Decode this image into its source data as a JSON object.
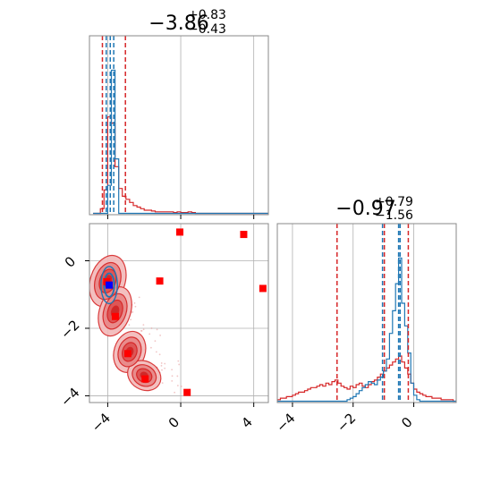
{
  "chart_data": [
    {
      "type": "histogram",
      "panel": "param1-marginal",
      "title": {
        "main": "−3.86",
        "sup": "+0.83",
        "sub": "−0.43"
      },
      "xlim": [
        -5.0,
        4.8
      ],
      "grid": true,
      "bin_edges": [
        -4.8,
        -4.6,
        -4.4,
        -4.2,
        -4.0,
        -3.8,
        -3.6,
        -3.4,
        -3.2,
        -3.0,
        -2.8,
        -2.6,
        -2.4,
        -2.2,
        -2.0,
        -1.8,
        -1.6,
        -1.4,
        -1.2,
        -1.0,
        -0.8,
        -0.6,
        -0.4,
        -0.2,
        0.0,
        0.2,
        0.4,
        0.6,
        0.8,
        1.0,
        1.2,
        1.4,
        1.6,
        1.8,
        2.0,
        2.2,
        2.4,
        2.6,
        2.8,
        3.0,
        3.2,
        3.4,
        3.6,
        3.8,
        4.0,
        4.2,
        4.4,
        4.6,
        4.8
      ],
      "series": [
        {
          "color": "#d62728",
          "counts": [
            0,
            0,
            0.03,
            0.15,
            0.62,
            0.58,
            0.3,
            0.16,
            0.11,
            0.09,
            0.07,
            0.05,
            0.04,
            0.03,
            0.02,
            0.02,
            0.015,
            0.01,
            0.01,
            0.01,
            0.01,
            0.01,
            0.005,
            0.01,
            0.005,
            0.005,
            0.01,
            0.005,
            0,
            0,
            0,
            0,
            0,
            0,
            0,
            0,
            0,
            0,
            0,
            0,
            0,
            0,
            0,
            0,
            0,
            0,
            0,
            0
          ]
        },
        {
          "color": "#1f77b4",
          "counts": [
            0,
            0,
            0,
            0,
            0.18,
            0.92,
            0.35,
            0.0,
            0,
            0,
            0,
            0,
            0,
            0,
            0,
            0,
            0,
            0,
            0,
            0,
            0,
            0,
            0,
            0,
            0,
            0,
            0,
            0,
            0,
            0,
            0,
            0,
            0,
            0,
            0,
            0,
            0,
            0,
            0,
            0,
            0,
            0,
            0,
            0,
            0,
            0,
            0,
            0
          ]
        }
      ],
      "quantiles": [
        {
          "color": "#d62728",
          "values": [
            -4.29,
            -3.86,
            -3.03
          ]
        },
        {
          "color": "#1f77b4",
          "values": [
            -4.08,
            -3.86,
            -3.67
          ]
        }
      ]
    },
    {
      "type": "contour",
      "panel": "param1-vs-param2",
      "xlim": [
        -5.0,
        4.8
      ],
      "ylim": [
        -4.2,
        1.1
      ],
      "xticks": [
        -4,
        0,
        4
      ],
      "yticks": [
        0,
        -2,
        -4
      ],
      "grid": true,
      "red_contour_centers": [
        [
          -4.0,
          -0.6
        ],
        [
          -3.6,
          -1.5
        ],
        [
          -2.8,
          -2.7
        ],
        [
          -2.0,
          -3.4
        ]
      ],
      "blue_contour_center": [
        -3.92,
        -0.72
      ],
      "blue_marker": [
        -3.92,
        -0.72
      ],
      "red_markers": [
        [
          -0.05,
          0.85
        ],
        [
          3.45,
          0.78
        ],
        [
          -1.15,
          -0.6
        ],
        [
          4.5,
          -0.82
        ],
        [
          -4.05,
          -0.62
        ],
        [
          -3.58,
          -1.65
        ],
        [
          -2.9,
          -2.75
        ],
        [
          -1.95,
          -3.5
        ],
        [
          0.35,
          -3.9
        ]
      ]
    },
    {
      "type": "histogram",
      "panel": "param2-marginal",
      "title": {
        "main": "−0.97",
        "sup": "+0.79",
        "sub": "−1.56"
      },
      "xlim": [
        -4.5,
        1.4
      ],
      "xticks": [
        -4,
        -2,
        0
      ],
      "grid": true,
      "bin_edges": [
        -4.5,
        -4.4,
        -4.3,
        -4.2,
        -4.1,
        -4.0,
        -3.9,
        -3.8,
        -3.7,
        -3.6,
        -3.5,
        -3.4,
        -3.3,
        -3.2,
        -3.1,
        -3.0,
        -2.9,
        -2.8,
        -2.7,
        -2.6,
        -2.5,
        -2.4,
        -2.3,
        -2.2,
        -2.1,
        -2.0,
        -1.9,
        -1.8,
        -1.7,
        -1.6,
        -1.5,
        -1.4,
        -1.3,
        -1.2,
        -1.1,
        -1.0,
        -0.9,
        -0.8,
        -0.7,
        -0.6,
        -0.5,
        -0.4,
        -0.3,
        -0.2,
        -0.1,
        0.0,
        0.1,
        0.2,
        0.3,
        0.4,
        0.5,
        0.6,
        0.7,
        0.8,
        0.9,
        1.0,
        1.1,
        1.2,
        1.3,
        1.4
      ],
      "series": [
        {
          "color": "#d62728",
          "counts": [
            0.01,
            0.02,
            0.02,
            0.03,
            0.03,
            0.04,
            0.05,
            0.06,
            0.06,
            0.07,
            0.08,
            0.09,
            0.09,
            0.1,
            0.11,
            0.1,
            0.12,
            0.11,
            0.13,
            0.14,
            0.12,
            0.1,
            0.09,
            0.08,
            0.1,
            0.09,
            0.11,
            0.12,
            0.1,
            0.09,
            0.11,
            0.13,
            0.14,
            0.16,
            0.18,
            0.2,
            0.22,
            0.24,
            0.26,
            0.28,
            0.3,
            0.26,
            0.22,
            0.18,
            0.12,
            0.08,
            0.06,
            0.05,
            0.04,
            0.03,
            0.03,
            0.02,
            0.02,
            0.02,
            0.01,
            0.01,
            0.01,
            0.01,
            0.0
          ]
        },
        {
          "color": "#1f77b4",
          "counts": [
            0,
            0,
            0,
            0,
            0,
            0,
            0,
            0,
            0,
            0,
            0,
            0,
            0,
            0,
            0,
            0,
            0,
            0,
            0,
            0,
            0,
            0,
            0,
            0.01,
            0.02,
            0.03,
            0.05,
            0.07,
            0.09,
            0.11,
            0.13,
            0.12,
            0.11,
            0.14,
            0.16,
            0.2,
            0.28,
            0.45,
            0.6,
            0.78,
            0.95,
            0.65,
            0.5,
            0.32,
            0.12,
            0.04,
            0.01,
            0,
            0,
            0,
            0,
            0,
            0,
            0,
            0,
            0,
            0,
            0,
            0
          ]
        }
      ],
      "quantiles": [
        {
          "color": "#d62728",
          "values": [
            -2.53,
            -0.97,
            -0.18
          ]
        },
        {
          "color": "#1f77b4",
          "values": [
            -1.03,
            -0.5,
            -0.45
          ]
        }
      ]
    }
  ]
}
